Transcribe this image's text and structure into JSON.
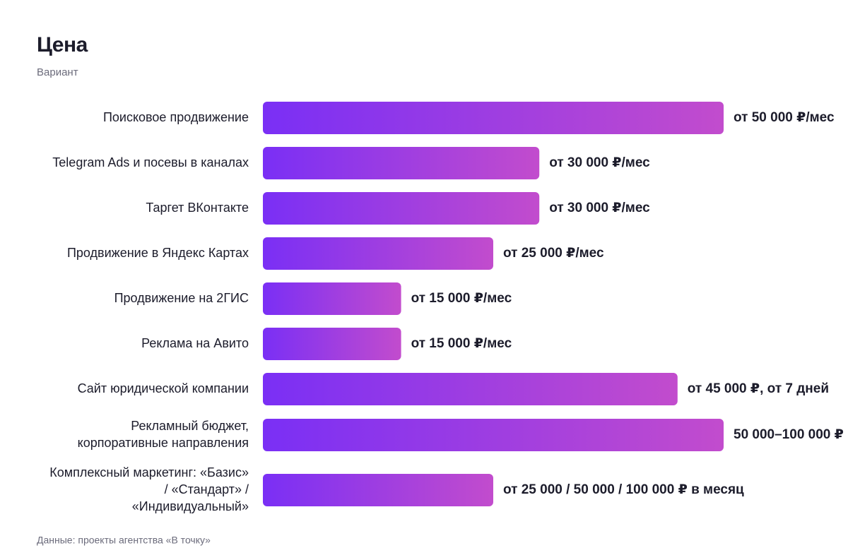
{
  "chart_data": {
    "type": "bar",
    "orientation": "horizontal",
    "title": "Цена",
    "subtitle": "Вариант",
    "source": "Данные: проекты агентства «В точку»",
    "categories": [
      "Поисковое продвижение",
      "Telegram Ads и посевы в каналах",
      "Таргет ВКонтакте",
      "Продвижение в Яндекс Картах",
      "Продвижение на 2ГИС",
      "Реклама на Авито",
      "Сайт юридической компании",
      "Рекламный бюджет,\nкорпоративные направления",
      "Комплексный маркетинг: «Базис»\n/ «Стандарт» /\n«Индивидуальный»"
    ],
    "values": [
      50000,
      30000,
      30000,
      25000,
      15000,
      15000,
      45000,
      50000,
      25000
    ],
    "value_labels": [
      "от 50 000 ₽/мес",
      "от 30 000 ₽/мес",
      "от 30 000 ₽/мес",
      "от 25 000 ₽/мес",
      "от 15 000 ₽/мес",
      "от 15 000 ₽/мес",
      "от 45 000 ₽, от 7 дней",
      "50 000–100 000 ₽",
      "от 25 000 / 50 000 / 100 000 ₽ в месяц"
    ],
    "gradient": [
      "#7a2ff5",
      "#c24ccd"
    ]
  }
}
